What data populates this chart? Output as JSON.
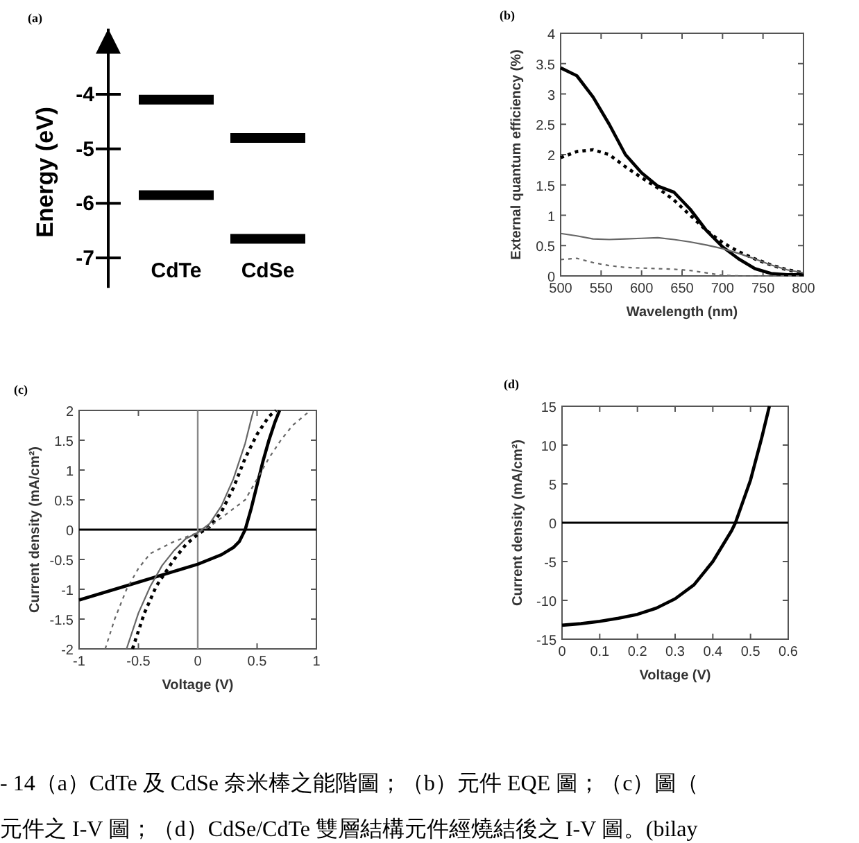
{
  "chart_data": [
    {
      "type": "box",
      "title": "(a)",
      "ylabel": "Energy (eV)",
      "categories": [
        "CdTe",
        "CdSe"
      ],
      "ylim": [
        -7.55,
        -2.8
      ],
      "yticks": [
        {
          "value": -4,
          "label": "-4"
        },
        {
          "value": -5,
          "label": "-5"
        },
        {
          "value": -6,
          "label": "-6"
        },
        {
          "value": -7,
          "label": "-7"
        }
      ],
      "tick_labels": "y",
      "series": [
        {
          "color": "#000000",
          "boxes": [
            {
              "low": -4.1,
              "q1": -4.1,
              "median": -4.1,
              "q3": -4.1,
              "high": -4.1
            },
            {
              "low": -4.8,
              "q1": -4.8,
              "median": -4.8,
              "q3": -4.8,
              "high": -4.8
            }
          ]
        },
        {
          "color": "#000000",
          "boxes": [
            {
              "low": -5.85,
              "q1": -5.85,
              "median": -5.85,
              "q3": -5.85,
              "high": -5.85
            },
            {
              "low": -6.65,
              "q1": -6.65,
              "median": -6.65,
              "q3": -6.65,
              "high": -6.65
            }
          ]
        }
      ]
    },
    {
      "type": "line",
      "title": "(b)",
      "xlabel": "Wavelength (nm)",
      "ylabel": "External quantum efficiency (%)",
      "xlim": [
        500,
        800
      ],
      "ylim": [
        0,
        4
      ],
      "xticks": [
        500,
        550,
        600,
        650,
        700,
        750,
        800
      ],
      "yticks": [
        0,
        0.5,
        1,
        1.5,
        2,
        2.5,
        3,
        3.5,
        4
      ],
      "x": [
        500,
        520,
        540,
        560,
        580,
        600,
        620,
        640,
        660,
        680,
        700,
        720,
        740,
        760,
        780,
        800
      ],
      "series": [
        {
          "color": "#000000",
          "line_style": "solid",
          "values": [
            3.43,
            3.3,
            2.95,
            2.5,
            2.0,
            1.7,
            1.48,
            1.38,
            1.1,
            0.75,
            0.48,
            0.28,
            0.12,
            0.04,
            0.02,
            0.02
          ]
        },
        {
          "color": "#000000",
          "line_style": "dotted",
          "values": [
            1.95,
            2.05,
            2.08,
            2.0,
            1.8,
            1.62,
            1.45,
            1.25,
            1.0,
            0.75,
            0.55,
            0.4,
            0.28,
            0.18,
            0.1,
            0.05
          ]
        },
        {
          "color": "#666666",
          "line_style": "solid",
          "values": [
            0.7,
            0.66,
            0.61,
            0.6,
            0.61,
            0.62,
            0.63,
            0.6,
            0.56,
            0.51,
            0.45,
            0.37,
            0.28,
            0.18,
            0.1,
            0.05
          ]
        },
        {
          "color": "#666666",
          "line_style": "dotted",
          "values": [
            0.27,
            0.29,
            0.22,
            0.17,
            0.14,
            0.13,
            0.12,
            0.11,
            0.09,
            0.05,
            0.01,
            0,
            0,
            0,
            0,
            0
          ]
        }
      ]
    },
    {
      "type": "line",
      "title": "(c)",
      "xlabel": "Voltage (V)",
      "ylabel": "Current density (mA/cm²)",
      "xlim": [
        -1,
        1
      ],
      "ylim": [
        -2,
        2
      ],
      "xticks": [
        -1,
        -0.5,
        0,
        0.5,
        1
      ],
      "yticks": [
        -2,
        -1.5,
        -1,
        -0.5,
        0,
        0.5,
        1,
        1.5,
        2
      ],
      "ref_lines": [
        {
          "axis": "y",
          "value": 0,
          "color": "#000000"
        },
        {
          "axis": "x",
          "value": 0,
          "color": "#888888"
        }
      ],
      "series": [
        {
          "color": "#000000",
          "line_style": "solid",
          "x": [
            -1,
            -0.5,
            0,
            0.2,
            0.3,
            0.35,
            0.4,
            0.45,
            0.5,
            0.55,
            0.6,
            0.65,
            0.69
          ],
          "values": [
            -1.18,
            -0.88,
            -0.58,
            -0.42,
            -0.3,
            -0.2,
            0,
            0.35,
            0.75,
            1.15,
            1.5,
            1.8,
            2
          ]
        },
        {
          "color": "#000000",
          "line_style": "dotted",
          "x": [
            -0.55,
            -0.45,
            -0.35,
            -0.2,
            -0.1,
            0,
            0.1,
            0.2,
            0.3,
            0.4,
            0.5,
            0.6,
            0.66
          ],
          "values": [
            -2,
            -1.4,
            -0.95,
            -0.5,
            -0.25,
            -0.08,
            0.05,
            0.3,
            0.7,
            1.2,
            1.6,
            1.9,
            2
          ]
        },
        {
          "color": "#666666",
          "line_style": "solid",
          "x": [
            -0.6,
            -0.5,
            -0.4,
            -0.3,
            -0.2,
            -0.1,
            0,
            0.1,
            0.2,
            0.3,
            0.4,
            0.45,
            0.47
          ],
          "values": [
            -2,
            -1.4,
            -0.95,
            -0.6,
            -0.35,
            -0.15,
            -0.05,
            0.1,
            0.4,
            0.85,
            1.45,
            1.85,
            2
          ]
        },
        {
          "color": "#666666",
          "line_style": "dotted",
          "x": [
            -0.78,
            -0.7,
            -0.6,
            -0.5,
            -0.4,
            -0.2,
            0,
            0.1,
            0.2,
            0.3,
            0.4,
            0.5,
            0.6,
            0.7,
            0.8,
            0.95
          ],
          "values": [
            -2,
            -1.5,
            -1.0,
            -0.65,
            -0.4,
            -0.2,
            -0.05,
            0.05,
            0.2,
            0.35,
            0.5,
            0.85,
            1.2,
            1.5,
            1.75,
            2
          ]
        }
      ]
    },
    {
      "type": "line",
      "title": "(d)",
      "xlabel": "Voltage (V)",
      "ylabel": "Current density (mA/cm²)",
      "xlim": [
        0,
        0.6
      ],
      "ylim": [
        -15,
        15
      ],
      "xticks": [
        0,
        0.1,
        0.2,
        0.3,
        0.4,
        0.5,
        0.6
      ],
      "yticks": [
        -15,
        -10,
        -5,
        0,
        5,
        10,
        15
      ],
      "ref_lines": [
        {
          "axis": "y",
          "value": 0,
          "color": "#000000"
        }
      ],
      "annotations": [
        "- 14（a）CdTe 及 CdSe 奈米棒之能階圖；（b）元件 EQE 圖；（c）圖（",
        "元件之 I-V 圖；（d）CdSe/CdTe 雙層結構元件經燒結後之 I-V 圖。(bilay"
      ],
      "series": [
        {
          "color": "#000000",
          "line_style": "solid",
          "x": [
            0,
            0.05,
            0.1,
            0.15,
            0.2,
            0.25,
            0.3,
            0.35,
            0.4,
            0.45,
            0.46,
            0.5,
            0.53,
            0.55
          ],
          "values": [
            -13.2,
            -13,
            -12.7,
            -12.3,
            -11.8,
            -11,
            -9.8,
            -8,
            -5,
            -1,
            0,
            5.5,
            11,
            15
          ]
        }
      ]
    }
  ]
}
